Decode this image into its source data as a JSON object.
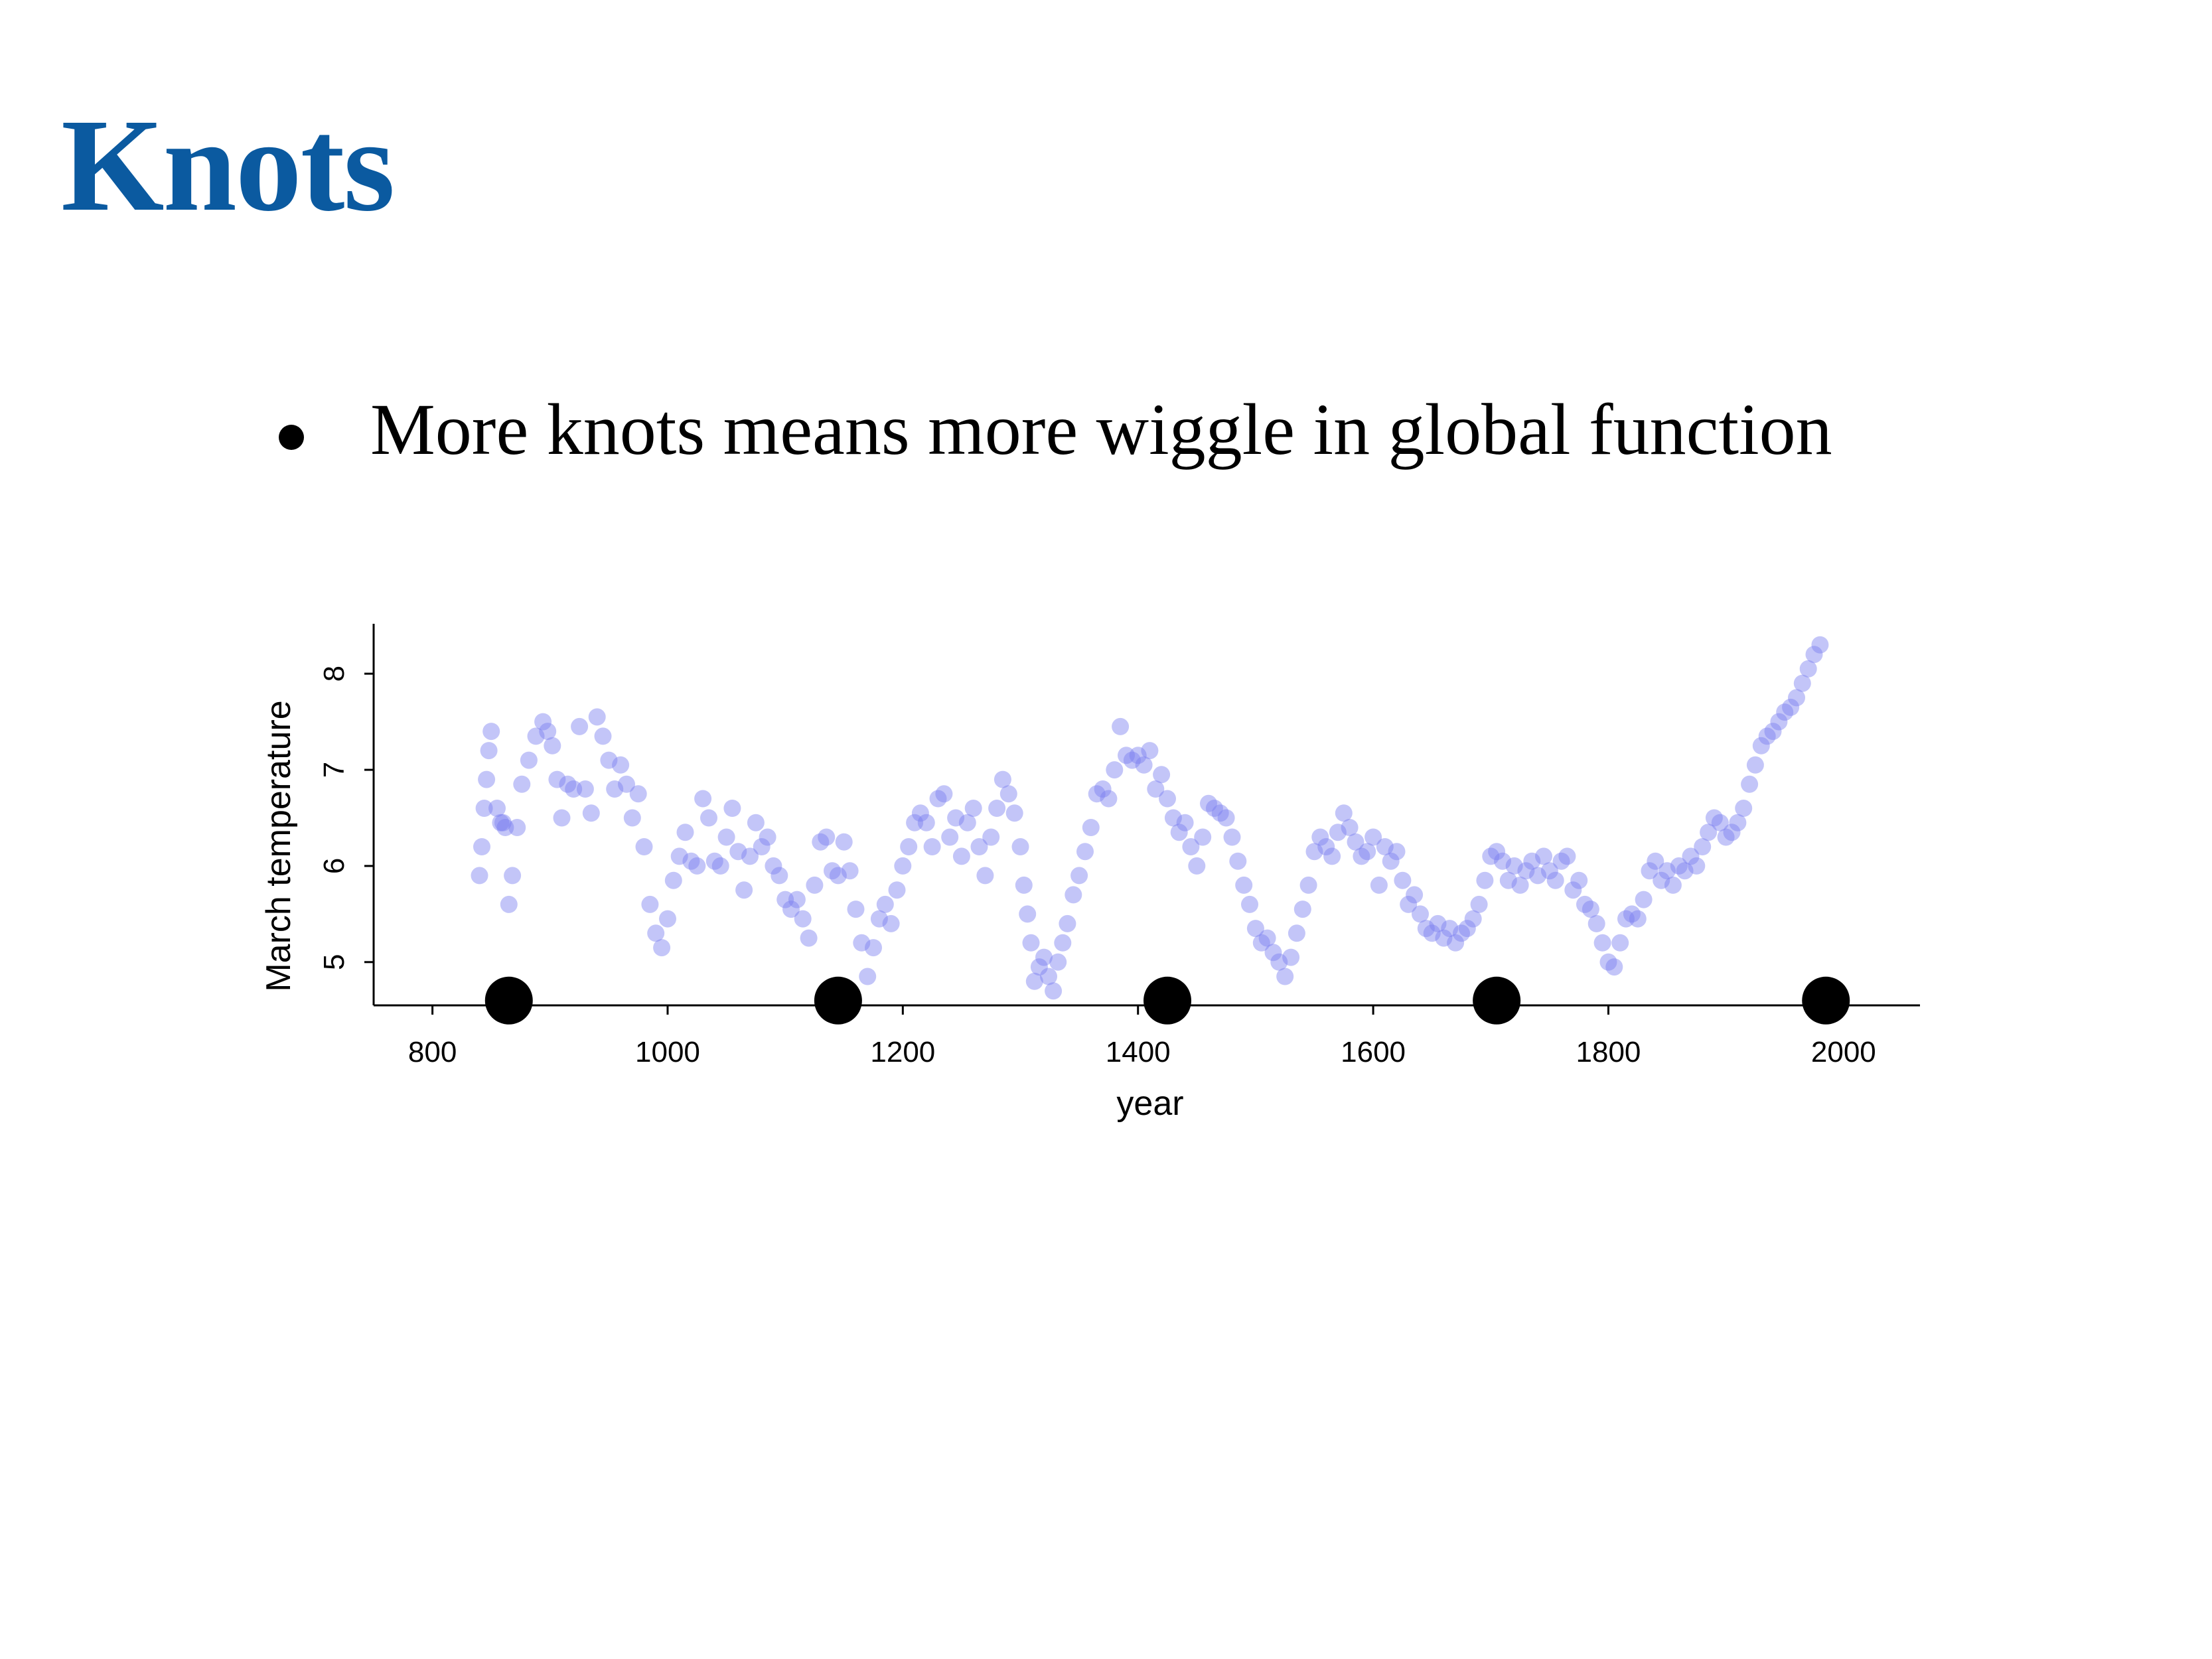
{
  "slide": {
    "title": "Knots",
    "bullet": "More knots means more wiggle in global function"
  },
  "colors": {
    "title": "#0b5aa0",
    "points": "#7b7ef0",
    "knots": "#000000"
  },
  "chart_data": {
    "type": "scatter",
    "xlabel": "year",
    "ylabel": "March temperature",
    "xlim": [
      750,
      2065
    ],
    "ylim": [
      4.55,
      8.45
    ],
    "xticks": [
      800,
      1000,
      1200,
      1400,
      1600,
      1800,
      2000
    ],
    "yticks": [
      5,
      6,
      7,
      8
    ],
    "grid": false,
    "legend": "none",
    "series": [
      {
        "points": [
          [
            840,
            5.9
          ],
          [
            842,
            6.2
          ],
          [
            844,
            6.6
          ],
          [
            846,
            6.9
          ],
          [
            848,
            7.2
          ],
          [
            850,
            7.4
          ],
          [
            855,
            6.6
          ],
          [
            858,
            6.45
          ],
          [
            860,
            6.45
          ],
          [
            862,
            6.4
          ],
          [
            865,
            5.6
          ],
          [
            868,
            5.9
          ],
          [
            872,
            6.4
          ],
          [
            876,
            6.85
          ],
          [
            882,
            7.1
          ],
          [
            888,
            7.35
          ],
          [
            894,
            7.5
          ],
          [
            898,
            7.4
          ],
          [
            902,
            7.25
          ],
          [
            906,
            6.9
          ],
          [
            910,
            6.5
          ],
          [
            915,
            6.85
          ],
          [
            920,
            6.8
          ],
          [
            925,
            7.45
          ],
          [
            930,
            6.8
          ],
          [
            935,
            6.55
          ],
          [
            940,
            7.55
          ],
          [
            945,
            7.35
          ],
          [
            950,
            7.1
          ],
          [
            955,
            6.8
          ],
          [
            960,
            7.05
          ],
          [
            965,
            6.85
          ],
          [
            970,
            6.5
          ],
          [
            975,
            6.75
          ],
          [
            980,
            6.2
          ],
          [
            985,
            5.6
          ],
          [
            990,
            5.3
          ],
          [
            995,
            5.15
          ],
          [
            1000,
            5.45
          ],
          [
            1005,
            5.85
          ],
          [
            1010,
            6.1
          ],
          [
            1015,
            6.35
          ],
          [
            1020,
            6.05
          ],
          [
            1025,
            6.0
          ],
          [
            1030,
            6.7
          ],
          [
            1035,
            6.5
          ],
          [
            1040,
            6.05
          ],
          [
            1045,
            6.0
          ],
          [
            1050,
            6.3
          ],
          [
            1055,
            6.6
          ],
          [
            1060,
            6.15
          ],
          [
            1065,
            5.75
          ],
          [
            1070,
            6.1
          ],
          [
            1075,
            6.45
          ],
          [
            1080,
            6.2
          ],
          [
            1085,
            6.3
          ],
          [
            1090,
            6.0
          ],
          [
            1095,
            5.9
          ],
          [
            1100,
            5.65
          ],
          [
            1105,
            5.55
          ],
          [
            1110,
            5.65
          ],
          [
            1115,
            5.45
          ],
          [
            1120,
            5.25
          ],
          [
            1125,
            5.8
          ],
          [
            1130,
            6.25
          ],
          [
            1135,
            6.3
          ],
          [
            1140,
            5.95
          ],
          [
            1145,
            5.9
          ],
          [
            1150,
            6.25
          ],
          [
            1155,
            5.95
          ],
          [
            1160,
            5.55
          ],
          [
            1165,
            5.2
          ],
          [
            1170,
            4.85
          ],
          [
            1175,
            5.15
          ],
          [
            1180,
            5.45
          ],
          [
            1185,
            5.6
          ],
          [
            1190,
            5.4
          ],
          [
            1195,
            5.75
          ],
          [
            1200,
            6.0
          ],
          [
            1205,
            6.2
          ],
          [
            1210,
            6.45
          ],
          [
            1215,
            6.55
          ],
          [
            1220,
            6.45
          ],
          [
            1225,
            6.2
          ],
          [
            1230,
            6.7
          ],
          [
            1235,
            6.75
          ],
          [
            1240,
            6.3
          ],
          [
            1245,
            6.5
          ],
          [
            1250,
            6.1
          ],
          [
            1255,
            6.45
          ],
          [
            1260,
            6.6
          ],
          [
            1265,
            6.2
          ],
          [
            1270,
            5.9
          ],
          [
            1275,
            6.3
          ],
          [
            1280,
            6.6
          ],
          [
            1285,
            6.9
          ],
          [
            1290,
            6.75
          ],
          [
            1295,
            6.55
          ],
          [
            1300,
            6.2
          ],
          [
            1303,
            5.8
          ],
          [
            1306,
            5.5
          ],
          [
            1309,
            5.2
          ],
          [
            1312,
            4.8
          ],
          [
            1316,
            4.95
          ],
          [
            1320,
            5.05
          ],
          [
            1324,
            4.85
          ],
          [
            1328,
            4.7
          ],
          [
            1332,
            5.0
          ],
          [
            1336,
            5.2
          ],
          [
            1340,
            5.4
          ],
          [
            1345,
            5.7
          ],
          [
            1350,
            5.9
          ],
          [
            1355,
            6.15
          ],
          [
            1360,
            6.4
          ],
          [
            1365,
            6.75
          ],
          [
            1370,
            6.8
          ],
          [
            1375,
            6.7
          ],
          [
            1380,
            7.0
          ],
          [
            1385,
            7.45
          ],
          [
            1390,
            7.15
          ],
          [
            1395,
            7.1
          ],
          [
            1400,
            7.15
          ],
          [
            1405,
            7.05
          ],
          [
            1410,
            7.2
          ],
          [
            1415,
            6.8
          ],
          [
            1420,
            6.95
          ],
          [
            1425,
            6.7
          ],
          [
            1430,
            6.5
          ],
          [
            1435,
            6.35
          ],
          [
            1440,
            6.45
          ],
          [
            1445,
            6.2
          ],
          [
            1450,
            6.0
          ],
          [
            1455,
            6.3
          ],
          [
            1460,
            6.65
          ],
          [
            1465,
            6.6
          ],
          [
            1470,
            6.55
          ],
          [
            1475,
            6.5
          ],
          [
            1480,
            6.3
          ],
          [
            1485,
            6.05
          ],
          [
            1490,
            5.8
          ],
          [
            1495,
            5.6
          ],
          [
            1500,
            5.35
          ],
          [
            1505,
            5.2
          ],
          [
            1510,
            5.25
          ],
          [
            1515,
            5.1
          ],
          [
            1520,
            5.0
          ],
          [
            1525,
            4.85
          ],
          [
            1530,
            5.05
          ],
          [
            1535,
            5.3
          ],
          [
            1540,
            5.55
          ],
          [
            1545,
            5.8
          ],
          [
            1550,
            6.15
          ],
          [
            1555,
            6.3
          ],
          [
            1560,
            6.2
          ],
          [
            1565,
            6.1
          ],
          [
            1570,
            6.35
          ],
          [
            1575,
            6.55
          ],
          [
            1580,
            6.4
          ],
          [
            1585,
            6.25
          ],
          [
            1590,
            6.1
          ],
          [
            1595,
            6.15
          ],
          [
            1600,
            6.3
          ],
          [
            1605,
            5.8
          ],
          [
            1610,
            6.2
          ],
          [
            1615,
            6.05
          ],
          [
            1620,
            6.15
          ],
          [
            1625,
            5.85
          ],
          [
            1630,
            5.6
          ],
          [
            1635,
            5.7
          ],
          [
            1640,
            5.5
          ],
          [
            1645,
            5.35
          ],
          [
            1650,
            5.3
          ],
          [
            1655,
            5.4
          ],
          [
            1660,
            5.25
          ],
          [
            1665,
            5.35
          ],
          [
            1670,
            5.2
          ],
          [
            1675,
            5.3
          ],
          [
            1680,
            5.35
          ],
          [
            1685,
            5.45
          ],
          [
            1690,
            5.6
          ],
          [
            1695,
            5.85
          ],
          [
            1700,
            6.1
          ],
          [
            1705,
            6.15
          ],
          [
            1710,
            6.05
          ],
          [
            1715,
            5.85
          ],
          [
            1720,
            6.0
          ],
          [
            1725,
            5.8
          ],
          [
            1730,
            5.95
          ],
          [
            1735,
            6.05
          ],
          [
            1740,
            5.9
          ],
          [
            1745,
            6.1
          ],
          [
            1750,
            5.95
          ],
          [
            1755,
            5.85
          ],
          [
            1760,
            6.05
          ],
          [
            1765,
            6.1
          ],
          [
            1770,
            5.75
          ],
          [
            1775,
            5.85
          ],
          [
            1780,
            5.6
          ],
          [
            1785,
            5.55
          ],
          [
            1790,
            5.4
          ],
          [
            1795,
            5.2
          ],
          [
            1800,
            5.0
          ],
          [
            1805,
            4.95
          ],
          [
            1810,
            5.2
          ],
          [
            1815,
            5.45
          ],
          [
            1820,
            5.5
          ],
          [
            1825,
            5.45
          ],
          [
            1830,
            5.65
          ],
          [
            1835,
            5.95
          ],
          [
            1840,
            6.05
          ],
          [
            1845,
            5.85
          ],
          [
            1850,
            5.95
          ],
          [
            1855,
            5.8
          ],
          [
            1860,
            6.0
          ],
          [
            1865,
            5.95
          ],
          [
            1870,
            6.1
          ],
          [
            1875,
            6.0
          ],
          [
            1880,
            6.2
          ],
          [
            1885,
            6.35
          ],
          [
            1890,
            6.5
          ],
          [
            1895,
            6.45
          ],
          [
            1900,
            6.3
          ],
          [
            1905,
            6.35
          ],
          [
            1910,
            6.45
          ],
          [
            1915,
            6.6
          ],
          [
            1920,
            6.85
          ],
          [
            1925,
            7.05
          ],
          [
            1930,
            7.25
          ],
          [
            1935,
            7.35
          ],
          [
            1940,
            7.4
          ],
          [
            1945,
            7.5
          ],
          [
            1950,
            7.6
          ],
          [
            1955,
            7.65
          ],
          [
            1960,
            7.75
          ],
          [
            1965,
            7.9
          ],
          [
            1970,
            8.05
          ],
          [
            1975,
            8.2
          ],
          [
            1980,
            8.3
          ]
        ]
      }
    ],
    "knots": [
      865,
      1145,
      1425,
      1705,
      1985
    ]
  }
}
